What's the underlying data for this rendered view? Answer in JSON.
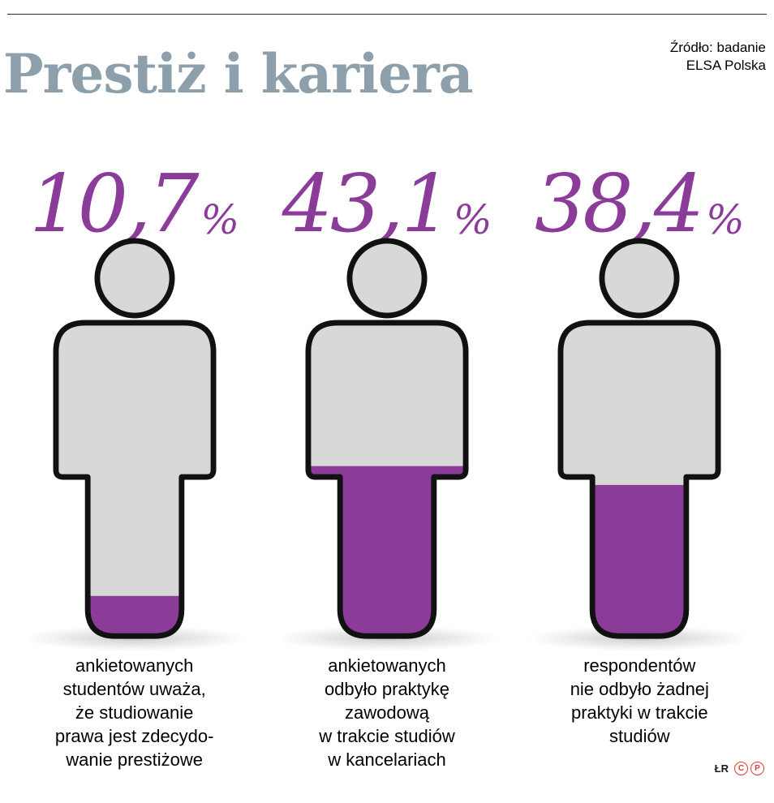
{
  "header": {
    "title": "Prestiż i kariera",
    "source": "Źródło: badanie\nELSA Polska"
  },
  "chart_data": {
    "type": "pictogram",
    "title": "Prestiż i kariera",
    "unit": "%",
    "source": "Źródło: badanie ELSA Polska",
    "series": [
      {
        "value": 10.7,
        "value_label": "10,7",
        "caption": "ankietowanych\nstudentów uważa,\nże studiowanie\nprawa jest zdecydo-\nwanie prestiżowe"
      },
      {
        "value": 43.1,
        "value_label": "43,1",
        "caption": "ankietowanych\nodbyło praktykę\nzawodową\nw trakcie studiów\nw kancelariach"
      },
      {
        "value": 38.4,
        "value_label": "38,4",
        "caption": "respondentów\nnie odbyło żadnej\npraktyki w trakcie\nstudiów"
      }
    ]
  },
  "footer": {
    "credit": "ŁR",
    "copyright_letters": [
      "C",
      "P"
    ]
  },
  "colors": {
    "accent_purple": "#8b3c99",
    "figure_gray": "#d8d8d8",
    "title_gray_blue": "#8c9fab",
    "copyright_red": "#e23a2e"
  }
}
